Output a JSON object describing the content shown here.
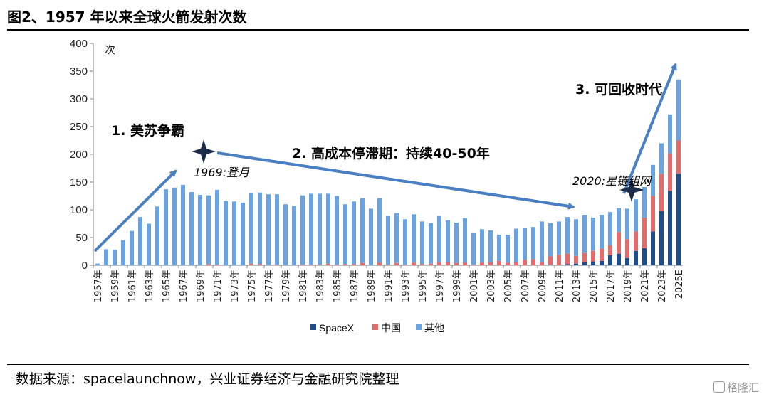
{
  "header": {
    "title": "图2、1957 年以来全球火箭发射次数"
  },
  "footer": {
    "source": "数据来源：spacelaunchnow，兴业证券经济与金融研究院整理",
    "watermark": "格隆汇"
  },
  "chart_data": {
    "type": "bar",
    "stacked": true,
    "title": "",
    "ylabel": "次",
    "xlabel": "",
    "ylim": [
      0,
      400
    ],
    "yticks": [
      0,
      50,
      100,
      150,
      200,
      250,
      300,
      350,
      400
    ],
    "grid": false,
    "legend_position": "bottom",
    "categories": [
      "1957年",
      "1958年",
      "1959年",
      "1960年",
      "1961年",
      "1962年",
      "1963年",
      "1964年",
      "1965年",
      "1966年",
      "1967年",
      "1968年",
      "1969年",
      "1970年",
      "1971年",
      "1972年",
      "1973年",
      "1974年",
      "1975年",
      "1976年",
      "1977年",
      "1978年",
      "1979年",
      "1980年",
      "1981年",
      "1982年",
      "1983年",
      "1984年",
      "1985年",
      "1986年",
      "1987年",
      "1988年",
      "1989年",
      "1990年",
      "1991年",
      "1992年",
      "1993年",
      "1994年",
      "1995年",
      "1996年",
      "1997年",
      "1998年",
      "1999年",
      "2000年",
      "2001年",
      "2002年",
      "2003年",
      "2004年",
      "2005年",
      "2006年",
      "2007年",
      "2008年",
      "2009年",
      "2010年",
      "2011年",
      "2012年",
      "2013年",
      "2014年",
      "2015年",
      "2016年",
      "2017年",
      "2018年",
      "2019年",
      "2020年",
      "2021年",
      "2022年",
      "2023年",
      "2024年",
      "2025E"
    ],
    "series": [
      {
        "name": "SpaceX",
        "color": "#1f4e8c",
        "values": [
          0,
          0,
          0,
          0,
          0,
          0,
          0,
          0,
          0,
          0,
          0,
          0,
          0,
          0,
          0,
          0,
          0,
          0,
          0,
          0,
          0,
          0,
          0,
          0,
          0,
          0,
          0,
          0,
          0,
          0,
          0,
          0,
          0,
          0,
          0,
          0,
          0,
          0,
          0,
          0,
          0,
          0,
          0,
          0,
          0,
          0,
          0,
          0,
          0,
          0,
          0,
          0,
          0,
          1,
          0,
          2,
          3,
          6,
          7,
          8,
          18,
          21,
          13,
          26,
          31,
          61,
          98,
          134,
          165
        ]
      },
      {
        "name": "中国",
        "color": "#e26b6b",
        "values": [
          0,
          0,
          0,
          0,
          0,
          0,
          0,
          0,
          0,
          0,
          0,
          0,
          0,
          2,
          1,
          0,
          0,
          0,
          3,
          2,
          0,
          1,
          0,
          0,
          1,
          1,
          1,
          3,
          1,
          2,
          2,
          4,
          0,
          5,
          1,
          4,
          1,
          5,
          2,
          3,
          6,
          6,
          4,
          5,
          1,
          5,
          6,
          8,
          5,
          6,
          10,
          11,
          6,
          15,
          19,
          19,
          14,
          16,
          19,
          22,
          18,
          39,
          34,
          35,
          55,
          64,
          67,
          68,
          60
        ]
      },
      {
        "name": "其他",
        "color": "#6aa4e0",
        "values": [
          3,
          29,
          28,
          45,
          62,
          87,
          75,
          106,
          137,
          140,
          145,
          132,
          127,
          124,
          135,
          116,
          115,
          113,
          127,
          129,
          128,
          127,
          110,
          107,
          125,
          128,
          128,
          126,
          124,
          108,
          113,
          117,
          102,
          116,
          88,
          90,
          82,
          87,
          77,
          73,
          83,
          75,
          73,
          80,
          57,
          60,
          57,
          47,
          50,
          60,
          58,
          58,
          73,
          60,
          60,
          66,
          66,
          69,
          60,
          61,
          60,
          43,
          55,
          58,
          55,
          56,
          55,
          70,
          110
        ]
      }
    ],
    "annotations": [
      {
        "text": "1. 美苏争霸"
      },
      {
        "text": "2. 高成本停滞期：持续40-50年"
      },
      {
        "text": "3. 可回收时代"
      },
      {
        "text": "1969:登月"
      },
      {
        "text": "2020:星链组网"
      }
    ]
  }
}
